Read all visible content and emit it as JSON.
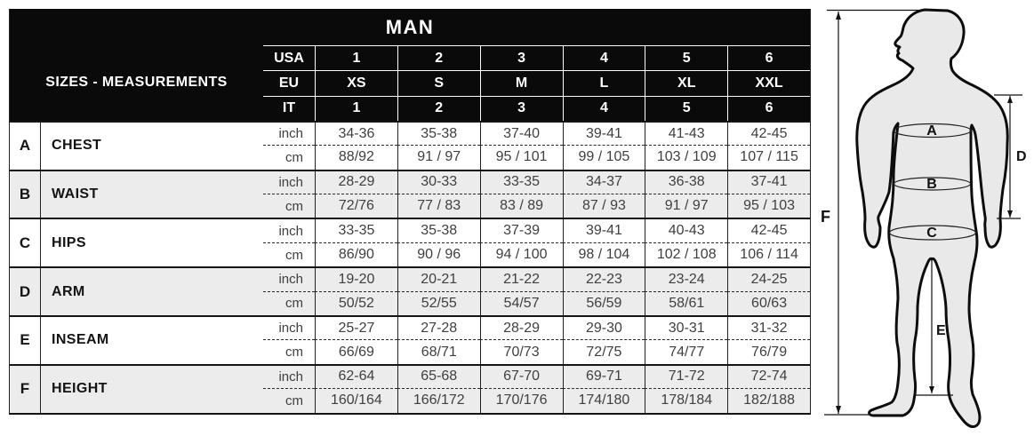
{
  "table": {
    "header": {
      "title": "MAN",
      "corner_label": "SIZES - MEASUREMENTS",
      "size_systems": [
        {
          "label": "USA",
          "values": [
            "1",
            "2",
            "3",
            "4",
            "5",
            "6"
          ]
        },
        {
          "label": "EU",
          "values": [
            "XS",
            "S",
            "M",
            "L",
            "XL",
            "XXL"
          ]
        },
        {
          "label": "IT",
          "values": [
            "1",
            "2",
            "3",
            "4",
            "5",
            "6"
          ]
        }
      ]
    },
    "unit_labels": {
      "inch": "inch",
      "cm": "cm"
    },
    "measurements": [
      {
        "letter": "A",
        "name": "CHEST",
        "inch": [
          "34-36",
          "35-38",
          "37-40",
          "39-41",
          "41-43",
          "42-45"
        ],
        "cm": [
          "88/92",
          "91 / 97",
          "95 / 101",
          "99 / 105",
          "103 / 109",
          "107 / 115"
        ]
      },
      {
        "letter": "B",
        "name": "WAIST",
        "inch": [
          "28-29",
          "30-33",
          "33-35",
          "34-37",
          "36-38",
          "37-41"
        ],
        "cm": [
          "72/76",
          "77 / 83",
          "83 / 89",
          "87 / 93",
          "91 / 97",
          "95 / 103"
        ]
      },
      {
        "letter": "C",
        "name": "HIPS",
        "inch": [
          "33-35",
          "35-38",
          "37-39",
          "39-41",
          "40-43",
          "42-45"
        ],
        "cm": [
          "86/90",
          "90 / 96",
          "94 / 100",
          "98 / 104",
          "102 / 108",
          "106 / 114"
        ]
      },
      {
        "letter": "D",
        "name": "ARM",
        "inch": [
          "19-20",
          "20-21",
          "21-22",
          "22-23",
          "23-24",
          "24-25"
        ],
        "cm": [
          "50/52",
          "52/55",
          "54/57",
          "56/59",
          "58/61",
          "60/63"
        ]
      },
      {
        "letter": "E",
        "name": "INSEAM",
        "inch": [
          "25-27",
          "27-28",
          "28-29",
          "29-30",
          "30-31",
          "31-32"
        ],
        "cm": [
          "66/69",
          "68/71",
          "70/73",
          "72/75",
          "74/77",
          "76/79"
        ]
      },
      {
        "letter": "F",
        "name": "HEIGHT",
        "inch": [
          "62-64",
          "65-68",
          "67-70",
          "69-71",
          "71-72",
          "72-74"
        ],
        "cm": [
          "160/164",
          "166/172",
          "170/176",
          "174/180",
          "178/184",
          "182/188"
        ]
      }
    ]
  },
  "figure": {
    "labels": {
      "chest": "A",
      "waist": "B",
      "hips": "C",
      "arm": "D",
      "inseam": "E",
      "height": "F"
    }
  },
  "colors": {
    "header_bg": "#0a0a0a",
    "header_text": "#ffffff",
    "row_alt_bg": "#ececec",
    "grid_line": "#141414",
    "value_text": "#3f3f3f",
    "label_text": "#141414",
    "figure_fill": "#e9e9e9",
    "figure_outline": "#0d0d0d"
  }
}
